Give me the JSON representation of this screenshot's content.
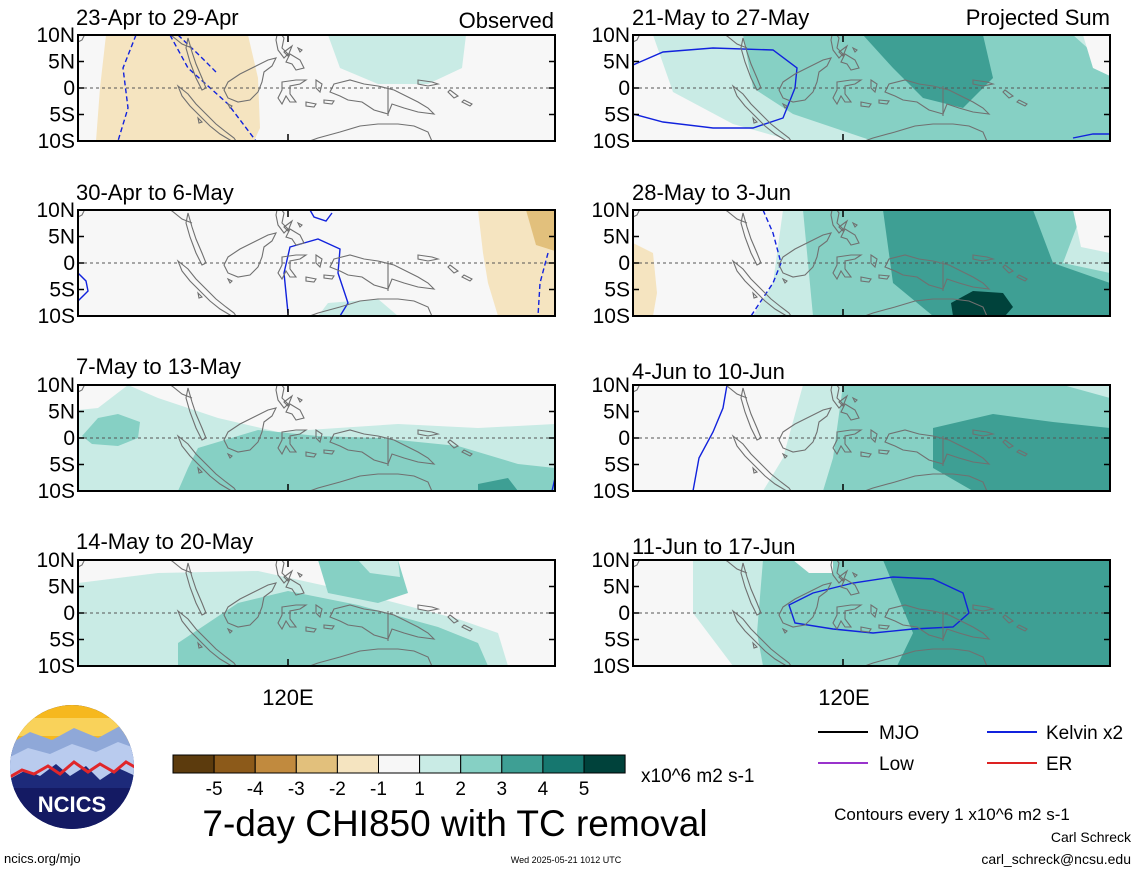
{
  "figure": {
    "title": "7-day CHI850 with TC removal",
    "observed_label": "Observed",
    "projected_label": "Projected Sum",
    "contour_note": "Contours every 1 x10^6 m2 s-1",
    "author": "Carl Schreck",
    "email": "carl_schreck@ncsu.edu",
    "site": "ncics.org/mjo",
    "timestamp": "Wed 2025-05-21 1012 UTC",
    "logo_text": "NCICS"
  },
  "colors": {
    "colorbar": [
      "#5c3b0d",
      "#8c5a1a",
      "#c18a3e",
      "#e2c07c",
      "#f5e4c0",
      "#f7f7f7",
      "#c9ebe5",
      "#86d0c4",
      "#3e9f94",
      "#16776f",
      "#00423b"
    ],
    "MJO": "#000000",
    "Low": "#9933cc",
    "Kelvin x2": "#1122dd",
    "ER": "#dd2222",
    "coast": "#707070"
  },
  "chart_data": {
    "type": "heatmap",
    "panels": [
      {
        "column": "Observed",
        "period": "23-Apr to 29-Apr"
      },
      {
        "column": "Observed",
        "period": "30-Apr to 6-May"
      },
      {
        "column": "Observed",
        "period": "7-May to 13-May"
      },
      {
        "column": "Observed",
        "period": "14-May to 20-May"
      },
      {
        "column": "Projected Sum",
        "period": "21-May to 27-May"
      },
      {
        "column": "Projected Sum",
        "period": "28-May to 3-Jun"
      },
      {
        "column": "Projected Sum",
        "period": "4-Jun to 10-Jun"
      },
      {
        "column": "Projected Sum",
        "period": "11-Jun to 17-Jun"
      }
    ],
    "y_ticks": [
      "10N",
      "5N",
      "0",
      "5S",
      "10S"
    ],
    "x_ticks": [
      "120E"
    ],
    "colorbar": {
      "unit": "x10^6 m2 s-1",
      "tick_labels": [
        "-5",
        "-4",
        "-3",
        "-2",
        "-1",
        "1",
        "2",
        "3",
        "4",
        "5"
      ]
    },
    "legend": [
      "MJO",
      "Low",
      "Kelvin x2",
      "ER"
    ]
  }
}
